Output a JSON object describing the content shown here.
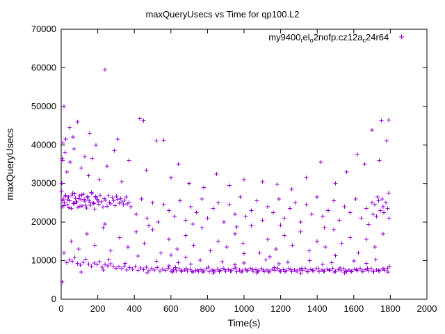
{
  "chart_data": {
    "type": "scatter",
    "title": "maxQueryUsecs vs Time for qp100.L2",
    "xlabel": "Time(s)",
    "ylabel": "maxQueryUsecs",
    "xlim": [
      0,
      2000
    ],
    "ylim": [
      0,
      70000
    ],
    "xticks": [
      0,
      200,
      400,
      600,
      800,
      1000,
      1200,
      1400,
      1600,
      1800,
      2000
    ],
    "yticks": [
      0,
      10000,
      20000,
      30000,
      40000,
      50000,
      60000,
      70000
    ],
    "grid": false,
    "legend_position": "top-right-inside",
    "marker": "plus",
    "series_color": "#9400D3",
    "legend_parts": [
      {
        "text": "my9400",
        "sub": false
      },
      {
        "text": "r",
        "sub": true
      },
      {
        "text": "el",
        "sub": false
      },
      {
        "text": "o",
        "sub": true
      },
      {
        "text": "2nofp.cz12a",
        "sub": false
      },
      {
        "text": "c",
        "sub": true
      },
      {
        "text": "24r64",
        "sub": false
      }
    ],
    "points": [
      [
        5,
        4500
      ],
      [
        30,
        9500
      ],
      [
        45,
        10200
      ],
      [
        60,
        9800
      ],
      [
        75,
        10800
      ],
      [
        90,
        9300
      ],
      [
        105,
        8800
      ],
      [
        120,
        9600
      ],
      [
        135,
        10400
      ],
      [
        150,
        9100
      ],
      [
        165,
        8600
      ],
      [
        180,
        9400
      ],
      [
        195,
        8900
      ],
      [
        210,
        9700
      ],
      [
        225,
        8300
      ],
      [
        240,
        9000
      ],
      [
        255,
        8700
      ],
      [
        270,
        9200
      ],
      [
        285,
        8500
      ],
      [
        300,
        8000
      ],
      [
        315,
        8400
      ],
      [
        330,
        7900
      ],
      [
        345,
        8600
      ],
      [
        360,
        7600
      ],
      [
        375,
        8200
      ],
      [
        390,
        7800
      ],
      [
        405,
        8500
      ],
      [
        420,
        7500
      ],
      [
        435,
        8100
      ],
      [
        450,
        7700
      ],
      [
        465,
        8300
      ],
      [
        480,
        7400
      ],
      [
        495,
        7900
      ],
      [
        510,
        7600
      ],
      [
        525,
        8200
      ],
      [
        540,
        7300
      ],
      [
        555,
        7800
      ],
      [
        570,
        7500
      ],
      [
        585,
        8000
      ],
      [
        600,
        7200
      ],
      [
        615,
        7700
      ],
      [
        630,
        7400
      ],
      [
        645,
        7900
      ],
      [
        660,
        7100
      ],
      [
        675,
        7600
      ],
      [
        690,
        7300
      ],
      [
        705,
        7800
      ],
      [
        720,
        7000
      ],
      [
        735,
        7500
      ],
      [
        750,
        7200
      ],
      [
        765,
        7700
      ],
      [
        780,
        7400
      ],
      [
        795,
        7900
      ],
      [
        810,
        7100
      ],
      [
        825,
        7600
      ],
      [
        840,
        7300
      ],
      [
        855,
        7800
      ],
      [
        870,
        7500
      ],
      [
        885,
        8000
      ],
      [
        900,
        7200
      ],
      [
        915,
        7700
      ],
      [
        930,
        7400
      ],
      [
        945,
        7900
      ],
      [
        960,
        7100
      ],
      [
        975,
        7600
      ],
      [
        990,
        7300
      ],
      [
        1005,
        7800
      ],
      [
        1020,
        7500
      ],
      [
        1035,
        8000
      ],
      [
        1050,
        7200
      ],
      [
        1065,
        7700
      ],
      [
        1080,
        7400
      ],
      [
        1095,
        7900
      ],
      [
        1110,
        7100
      ],
      [
        1125,
        7600
      ],
      [
        1140,
        7300
      ],
      [
        1155,
        7800
      ],
      [
        1170,
        7500
      ],
      [
        1185,
        8000
      ],
      [
        1200,
        7200
      ],
      [
        1215,
        7700
      ],
      [
        1230,
        7400
      ],
      [
        1245,
        7900
      ],
      [
        1260,
        7100
      ],
      [
        1275,
        7600
      ],
      [
        1290,
        7300
      ],
      [
        1305,
        7800
      ],
      [
        1320,
        7500
      ],
      [
        1335,
        8000
      ],
      [
        1350,
        7200
      ],
      [
        1365,
        7700
      ],
      [
        1380,
        7400
      ],
      [
        1395,
        7900
      ],
      [
        1410,
        7100
      ],
      [
        1425,
        7600
      ],
      [
        1440,
        7300
      ],
      [
        1455,
        7800
      ],
      [
        1470,
        7500
      ],
      [
        1485,
        8000
      ],
      [
        1500,
        7200
      ],
      [
        1515,
        7700
      ],
      [
        1530,
        7400
      ],
      [
        1545,
        7900
      ],
      [
        1560,
        7100
      ],
      [
        1575,
        7600
      ],
      [
        1590,
        7300
      ],
      [
        1605,
        7800
      ],
      [
        1620,
        7500
      ],
      [
        1635,
        8000
      ],
      [
        1650,
        7200
      ],
      [
        1665,
        7700
      ],
      [
        1680,
        7400
      ],
      [
        1695,
        7900
      ],
      [
        1710,
        7100
      ],
      [
        1725,
        7600
      ],
      [
        1740,
        7300
      ],
      [
        1755,
        7800
      ],
      [
        1770,
        7500
      ],
      [
        1785,
        8000
      ],
      [
        1795,
        8600
      ],
      [
        110,
        7000
      ],
      [
        230,
        7600
      ],
      [
        350,
        9300
      ],
      [
        470,
        6900
      ],
      [
        590,
        8700
      ],
      [
        710,
        9100
      ],
      [
        830,
        6800
      ],
      [
        950,
        8900
      ],
      [
        1070,
        6900
      ],
      [
        1190,
        9200
      ],
      [
        1310,
        6800
      ],
      [
        1430,
        9000
      ],
      [
        1550,
        6900
      ],
      [
        1670,
        9300
      ],
      [
        1788,
        7000
      ],
      [
        260,
        10300
      ],
      [
        520,
        9800
      ],
      [
        640,
        9500
      ],
      [
        760,
        10100
      ],
      [
        880,
        9700
      ],
      [
        1000,
        9400
      ],
      [
        1120,
        10200
      ],
      [
        1240,
        9600
      ],
      [
        1360,
        10000
      ],
      [
        1480,
        9500
      ],
      [
        1600,
        9900
      ],
      [
        1720,
        10300
      ],
      [
        680,
        10800
      ],
      [
        1140,
        11000
      ],
      [
        420,
        11200
      ],
      [
        610,
        7000
      ],
      [
        625,
        8200
      ],
      [
        655,
        7500
      ],
      [
        685,
        7900
      ],
      [
        715,
        7200
      ],
      [
        745,
        7600
      ],
      [
        775,
        7000
      ],
      [
        805,
        8300
      ],
      [
        835,
        7400
      ],
      [
        865,
        7100
      ],
      [
        895,
        7700
      ],
      [
        925,
        7300
      ],
      [
        955,
        8100
      ],
      [
        985,
        7000
      ],
      [
        1015,
        7400
      ],
      [
        1045,
        7800
      ],
      [
        1075,
        7200
      ],
      [
        1105,
        7600
      ],
      [
        1135,
        7000
      ],
      [
        1165,
        8200
      ],
      [
        1195,
        7400
      ],
      [
        1225,
        7100
      ],
      [
        1255,
        7700
      ],
      [
        1285,
        7300
      ],
      [
        1315,
        8000
      ],
      [
        1345,
        7100
      ],
      [
        1375,
        7500
      ],
      [
        1405,
        7900
      ],
      [
        1435,
        7200
      ],
      [
        1465,
        7600
      ],
      [
        1495,
        7000
      ],
      [
        1525,
        8100
      ],
      [
        1555,
        7400
      ],
      [
        1585,
        7100
      ],
      [
        1615,
        7700
      ],
      [
        1645,
        7300
      ],
      [
        1675,
        8000
      ],
      [
        1705,
        7100
      ],
      [
        1735,
        7500
      ],
      [
        1765,
        7900
      ],
      [
        5,
        24000
      ],
      [
        12,
        26000
      ],
      [
        18,
        25000
      ],
      [
        25,
        27000
      ],
      [
        32,
        24500
      ],
      [
        40,
        26500
      ],
      [
        48,
        25500
      ],
      [
        55,
        23500
      ],
      [
        62,
        27500
      ],
      [
        70,
        24800
      ],
      [
        78,
        26200
      ],
      [
        85,
        25200
      ],
      [
        92,
        23800
      ],
      [
        100,
        26800
      ],
      [
        108,
        25800
      ],
      [
        115,
        24200
      ],
      [
        122,
        27200
      ],
      [
        130,
        25400
      ],
      [
        138,
        23600
      ],
      [
        145,
        26600
      ],
      [
        152,
        25600
      ],
      [
        160,
        24400
      ],
      [
        168,
        27400
      ],
      [
        175,
        25000
      ],
      [
        182,
        23400
      ],
      [
        190,
        26400
      ],
      [
        198,
        25900
      ],
      [
        205,
        24600
      ],
      [
        212,
        27000
      ],
      [
        220,
        25300
      ],
      [
        228,
        23900
      ],
      [
        235,
        26100
      ],
      [
        242,
        25700
      ],
      [
        250,
        24100
      ],
      [
        258,
        26900
      ],
      [
        265,
        25100
      ],
      [
        272,
        24700
      ],
      [
        280,
        26300
      ],
      [
        288,
        25500
      ],
      [
        295,
        24300
      ],
      [
        302,
        26700
      ],
      [
        310,
        25900
      ],
      [
        318,
        24900
      ],
      [
        325,
        26100
      ],
      [
        332,
        25300
      ],
      [
        340,
        24500
      ],
      [
        348,
        25700
      ],
      [
        355,
        26500
      ],
      [
        362,
        24700
      ],
      [
        370,
        25100
      ],
      [
        8,
        25500
      ],
      [
        15,
        24300
      ],
      [
        22,
        26700
      ],
      [
        35,
        25800
      ],
      [
        42,
        23700
      ],
      [
        58,
        26900
      ],
      [
        66,
        24900
      ],
      [
        74,
        27300
      ],
      [
        82,
        25300
      ],
      [
        95,
        26100
      ],
      [
        102,
        24100
      ],
      [
        112,
        27100
      ],
      [
        125,
        25900
      ],
      [
        133,
        24400
      ],
      [
        142,
        26300
      ],
      [
        158,
        25100
      ],
      [
        166,
        27700
      ],
      [
        178,
        24800
      ],
      [
        188,
        26600
      ],
      [
        202,
        25400
      ],
      [
        380,
        24000
      ],
      [
        410,
        22000
      ],
      [
        440,
        26000
      ],
      [
        470,
        21000
      ],
      [
        500,
        25000
      ],
      [
        530,
        20000
      ],
      [
        560,
        24500
      ],
      [
        590,
        23000
      ],
      [
        620,
        21500
      ],
      [
        650,
        25500
      ],
      [
        680,
        20500
      ],
      [
        710,
        24000
      ],
      [
        740,
        22500
      ],
      [
        770,
        26000
      ],
      [
        800,
        21000
      ],
      [
        830,
        23500
      ],
      [
        860,
        25000
      ],
      [
        890,
        20000
      ],
      [
        920,
        24500
      ],
      [
        950,
        22000
      ],
      [
        980,
        26500
      ],
      [
        1010,
        21500
      ],
      [
        1040,
        23000
      ],
      [
        1070,
        25500
      ],
      [
        1100,
        20500
      ],
      [
        1130,
        24000
      ],
      [
        1160,
        22500
      ],
      [
        1190,
        26000
      ],
      [
        1220,
        21000
      ],
      [
        1250,
        23500
      ],
      [
        1280,
        25000
      ],
      [
        1310,
        20000
      ],
      [
        1340,
        24500
      ],
      [
        1370,
        22000
      ],
      [
        1400,
        26500
      ],
      [
        1430,
        21500
      ],
      [
        1460,
        23000
      ],
      [
        1490,
        25500
      ],
      [
        1520,
        20500
      ],
      [
        1550,
        24000
      ],
      [
        1580,
        22500
      ],
      [
        1610,
        26000
      ],
      [
        1640,
        21000
      ],
      [
        1670,
        23500
      ],
      [
        1700,
        25000
      ],
      [
        1730,
        26500
      ],
      [
        1760,
        24000
      ],
      [
        1790,
        27500
      ],
      [
        1705,
        22000
      ],
      [
        1715,
        24500
      ],
      [
        1725,
        21500
      ],
      [
        1735,
        25500
      ],
      [
        1745,
        23000
      ],
      [
        1755,
        26000
      ],
      [
        1765,
        22500
      ],
      [
        1775,
        25000
      ],
      [
        1785,
        23500
      ],
      [
        1792,
        21000
      ],
      [
        15,
        12000
      ],
      [
        55,
        15000
      ],
      [
        95,
        13000
      ],
      [
        140,
        17000
      ],
      [
        185,
        14000
      ],
      [
        230,
        18500
      ],
      [
        270,
        12500
      ],
      [
        320,
        16000
      ],
      [
        365,
        13500
      ],
      [
        410,
        17500
      ],
      [
        455,
        14500
      ],
      [
        500,
        18000
      ],
      [
        545,
        12000
      ],
      [
        590,
        15500
      ],
      [
        635,
        13000
      ],
      [
        680,
        16500
      ],
      [
        725,
        14000
      ],
      [
        770,
        18500
      ],
      [
        815,
        12500
      ],
      [
        860,
        15000
      ],
      [
        905,
        13500
      ],
      [
        950,
        17000
      ],
      [
        995,
        14500
      ],
      [
        1040,
        19000
      ],
      [
        1085,
        12000
      ],
      [
        1130,
        15500
      ],
      [
        1175,
        13000
      ],
      [
        1220,
        16500
      ],
      [
        1265,
        14000
      ],
      [
        1310,
        17500
      ],
      [
        1355,
        12500
      ],
      [
        1400,
        15000
      ],
      [
        1445,
        13500
      ],
      [
        1490,
        18000
      ],
      [
        1535,
        14500
      ],
      [
        1580,
        16000
      ],
      [
        1625,
        12000
      ],
      [
        1670,
        15500
      ],
      [
        1715,
        13500
      ],
      [
        1760,
        17000
      ],
      [
        240,
        19500
      ],
      [
        480,
        19000
      ],
      [
        720,
        19500
      ],
      [
        960,
        18800
      ],
      [
        1200,
        19200
      ],
      [
        1440,
        18600
      ],
      [
        1680,
        19400
      ],
      [
        600,
        11500
      ],
      [
        1000,
        11800
      ],
      [
        1500,
        11300
      ],
      [
        8,
        36000
      ],
      [
        10,
        40500
      ],
      [
        20,
        38000
      ],
      [
        30,
        33000
      ],
      [
        50,
        35500
      ],
      [
        70,
        39000
      ],
      [
        90,
        46000
      ],
      [
        110,
        34000
      ],
      [
        130,
        37000
      ],
      [
        150,
        32000
      ],
      [
        170,
        36500
      ],
      [
        190,
        40000
      ],
      [
        210,
        31000
      ],
      [
        250,
        34500
      ],
      [
        290,
        38500
      ],
      [
        330,
        30500
      ],
      [
        370,
        36000
      ],
      [
        430,
        46800
      ],
      [
        450,
        46300
      ],
      [
        465,
        33500
      ],
      [
        560,
        41200
      ],
      [
        600,
        31500
      ],
      [
        640,
        35000
      ],
      [
        700,
        30000
      ],
      [
        780,
        29000
      ],
      [
        850,
        32500
      ],
      [
        920,
        29500
      ],
      [
        1000,
        31000
      ],
      [
        1100,
        30500
      ],
      [
        1180,
        29800
      ],
      [
        1260,
        28500
      ],
      [
        1340,
        31500
      ],
      [
        1420,
        35500
      ],
      [
        1500,
        30000
      ],
      [
        1560,
        33000
      ],
      [
        1620,
        37500
      ],
      [
        1660,
        35000
      ],
      [
        1700,
        43800
      ],
      [
        1740,
        36000
      ],
      [
        1780,
        41000
      ],
      [
        25,
        41500
      ],
      [
        45,
        44500
      ],
      [
        65,
        42000
      ],
      [
        155,
        43000
      ],
      [
        310,
        41500
      ],
      [
        240,
        59500
      ],
      [
        15,
        50000
      ],
      [
        1750,
        46300
      ],
      [
        1790,
        46500
      ],
      [
        520,
        41000
      ],
      [
        5,
        36500
      ],
      [
        2,
        28000
      ],
      [
        3,
        30000
      ]
    ]
  }
}
